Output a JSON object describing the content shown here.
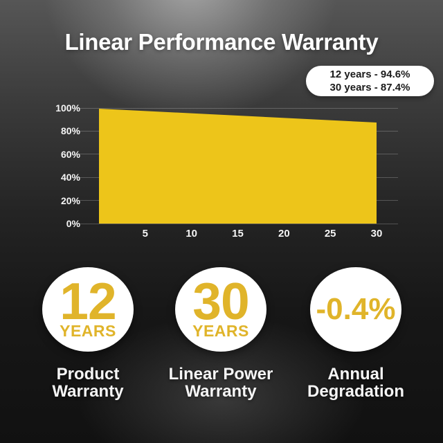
{
  "title": "Linear Performance Warranty",
  "badge": {
    "line1": "12 years - 94.6%",
    "line2": "30 years - 87.4%"
  },
  "chart_data": {
    "type": "area",
    "x": [
      0,
      12,
      30
    ],
    "values": [
      99.4,
      94.6,
      87.4
    ],
    "xlim": [
      0,
      30
    ],
    "ylim": [
      0,
      100
    ],
    "x_ticks": [
      5,
      10,
      15,
      20,
      25,
      30
    ],
    "y_ticks": [
      "0%",
      "20%",
      "40%",
      "60%",
      "80%",
      "100%"
    ],
    "grid": true,
    "legend": false,
    "area_color": "#EDC51A",
    "labeled_points": [
      {
        "x": 12,
        "y": 94.6,
        "label": "12 years - 94.6%"
      },
      {
        "x": 30,
        "y": 87.4,
        "label": "30 years - 87.4%"
      }
    ]
  },
  "stats": [
    {
      "value": "12",
      "unit": "YEARS",
      "caption": "Product Warranty"
    },
    {
      "value": "30",
      "unit": "YEARS",
      "caption": "Linear Power Warranty"
    },
    {
      "value": "-0.4%",
      "unit": "",
      "caption": "Annual Degradation"
    }
  ],
  "colors": {
    "accent_yellow": "#EDC51A",
    "stat_yellow": "#E0B42A",
    "title_text": "#FFFFFF",
    "caption_text": "#F5F5F5",
    "axis_text": "#F5F5F5",
    "badge_bg": "#FFFFFF",
    "badge_text": "#1B1B1B",
    "circle_bg": "#FFFFFF",
    "gridline": "rgba(255,255,255,0.22)"
  }
}
